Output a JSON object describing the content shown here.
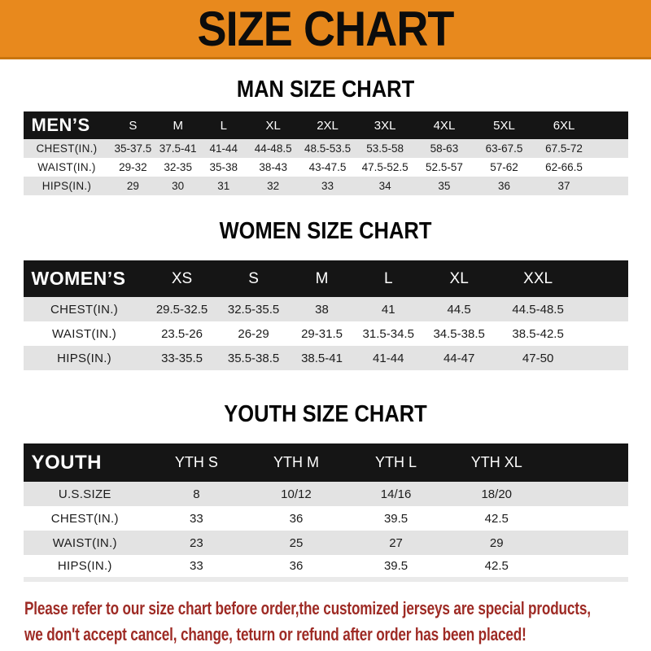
{
  "banner": {
    "title": "SIZE CHART"
  },
  "colors": {
    "banner_orange": "#e8891d",
    "banner_edge": "#c9750f",
    "header_bar_black": "#151515",
    "zebra_gray": "#e3e3e3",
    "footer_red": "#9e2b25"
  },
  "sections": [
    {
      "id": "men",
      "title": "MAN SIZE CHART",
      "header_label": "MEN’S",
      "columns": [
        "S",
        "M",
        "L",
        "XL",
        "2XL",
        "3XL",
        "4XL",
        "5XL",
        "6XL"
      ],
      "rows": [
        {
          "label": "CHEST(IN.)",
          "values": [
            "35-37.5",
            "37.5-41",
            "41-44",
            "44-48.5",
            "48.5-53.5",
            "53.5-58",
            "58-63",
            "63-67.5",
            "67.5-72"
          ]
        },
        {
          "label": "WAIST(IN.)",
          "values": [
            "29-32",
            "32-35",
            "35-38",
            "38-43",
            "43-47.5",
            "47.5-52.5",
            "52.5-57",
            "57-62",
            "62-66.5"
          ]
        },
        {
          "label": "HIPS(IN.)",
          "values": [
            "29",
            "30",
            "31",
            "32",
            "33",
            "34",
            "35",
            "36",
            "37"
          ]
        }
      ]
    },
    {
      "id": "women",
      "title": "WOMEN SIZE CHART",
      "header_label": "WOMEN’S",
      "columns": [
        "XS",
        "S",
        "M",
        "L",
        "XL",
        "XXL"
      ],
      "rows": [
        {
          "label": "CHEST(IN.)",
          "values": [
            "29.5-32.5",
            "32.5-35.5",
            "38",
            "41",
            "44.5",
            "44.5-48.5"
          ]
        },
        {
          "label": "WAIST(IN.)",
          "values": [
            "23.5-26",
            "26-29",
            "29-31.5",
            "31.5-34.5",
            "34.5-38.5",
            "38.5-42.5"
          ]
        },
        {
          "label": "HIPS(IN.)",
          "values": [
            "33-35.5",
            "35.5-38.5",
            "38.5-41",
            "41-44",
            "44-47",
            "47-50"
          ]
        }
      ]
    },
    {
      "id": "youth",
      "title": "YOUTH SIZE CHART",
      "header_label": "YOUTH",
      "columns": [
        "YTH S",
        "YTH M",
        "YTH L",
        "YTH XL"
      ],
      "rows": [
        {
          "label": "U.S.SIZE",
          "values": [
            "8",
            "10/12",
            "14/16",
            "18/20"
          ]
        },
        {
          "label": "CHEST(IN.)",
          "values": [
            "33",
            "36",
            "39.5",
            "42.5"
          ]
        },
        {
          "label": "WAIST(IN.)",
          "values": [
            "23",
            "25",
            "27",
            "29"
          ]
        },
        {
          "label": "HIPS(IN.)",
          "values": [
            "33",
            "36",
            "39.5",
            "42.5"
          ]
        }
      ]
    }
  ],
  "footer": {
    "line1": "Please refer to our size chart before order,the customized jerseys are special products,",
    "line2": "we don't accept cancel, change, teturn or refund after order has been placed!"
  }
}
